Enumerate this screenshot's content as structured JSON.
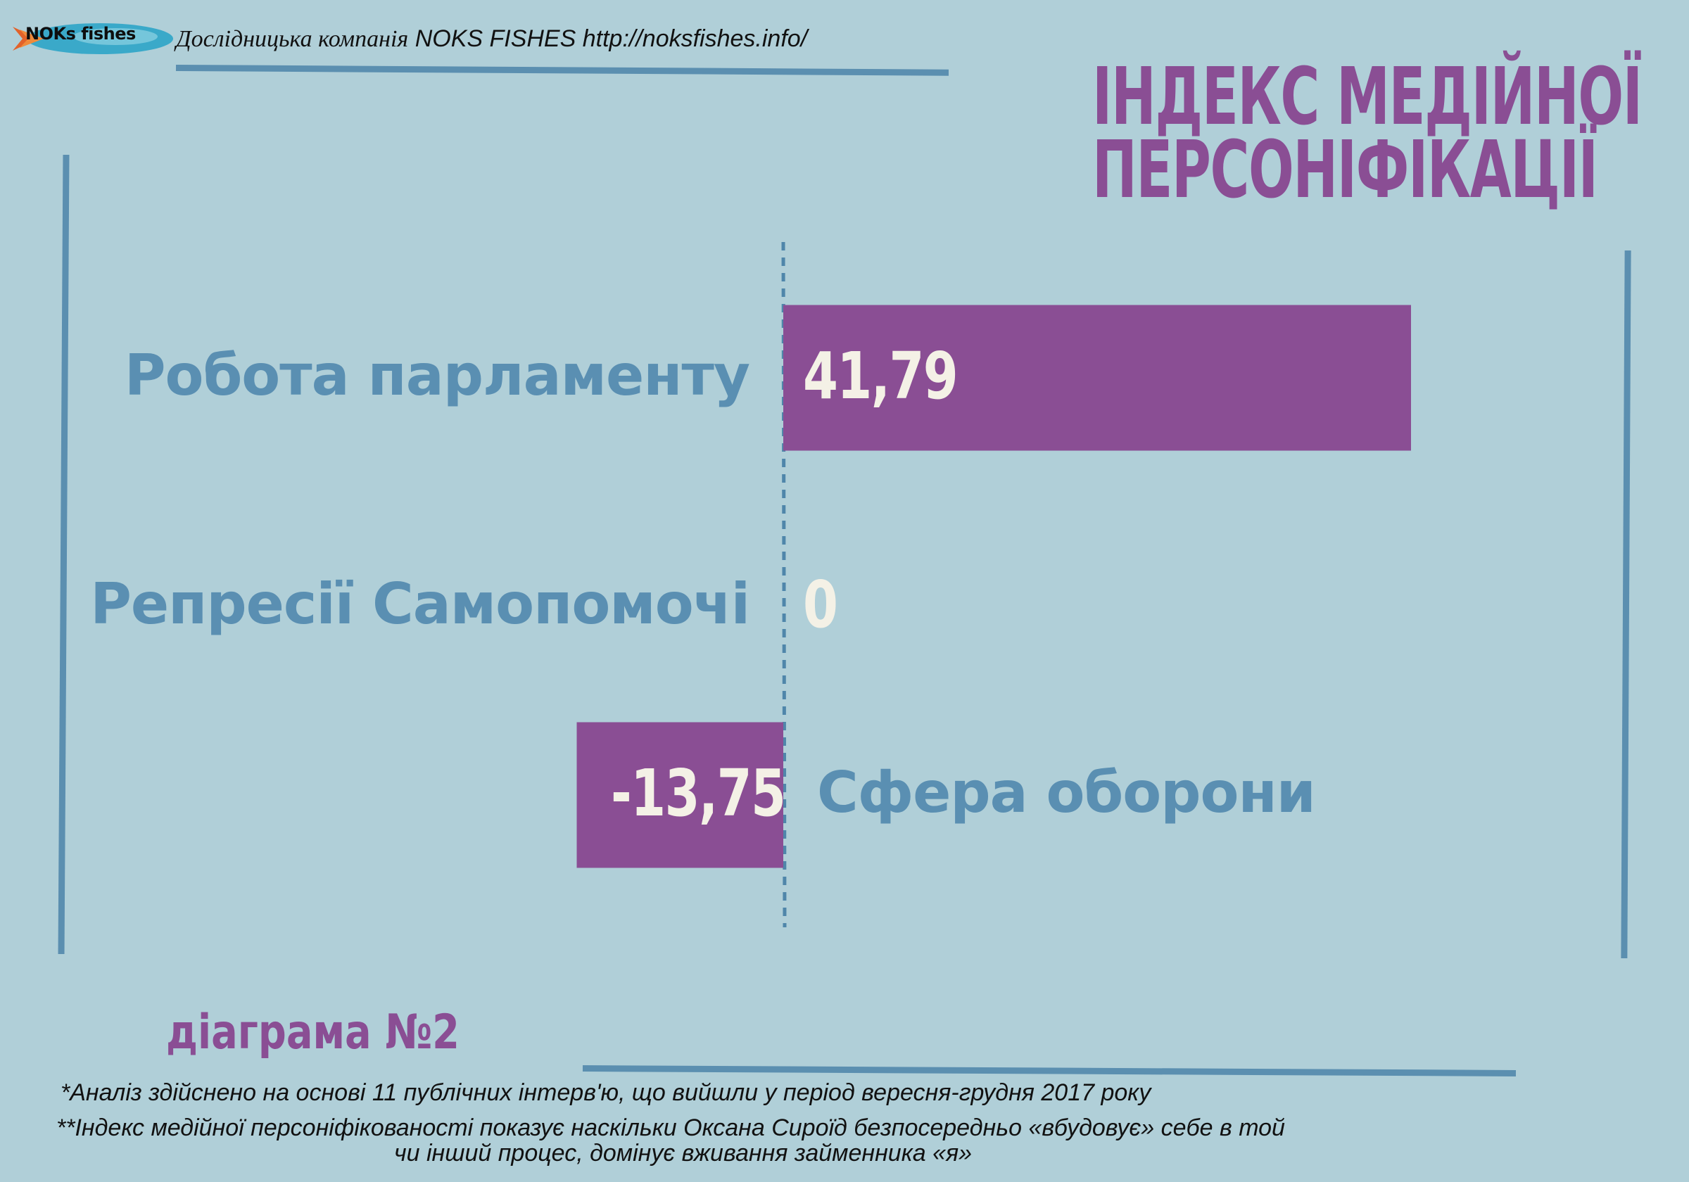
{
  "header": {
    "logo_text": "NOKs fishes",
    "company_prefix": "Дослідницька компанія",
    "company_name": "NOKS FISHES http://noksfishes.info/"
  },
  "title_line1": "ІНДЕКС МЕДІЙНОЇ",
  "title_line2": "ПЕРСОНІФІКАЦІЇ",
  "chart_data": {
    "type": "bar",
    "orientation": "horizontal",
    "categories": [
      "Робота парламенту",
      "Репресії Самопомочі",
      "Сфера оборони"
    ],
    "values": [
      41.79,
      0,
      -13.75
    ],
    "value_labels": [
      "41,79",
      "0",
      "-13,75"
    ],
    "bar_color": "#8a4e94",
    "grid": false,
    "legend": "none"
  },
  "footer": {
    "diagram_number": "діаграма №2",
    "note1": "*Аналіз здійснено на основі 11 публічних інтерв'ю, що вийшли у період вересня-грудня 2017 року",
    "note2_line1": "**Індекс медійної персоніфікованості показує наскільки Оксана Сироїд безпосередньо «вбудовує» себе в той",
    "note2_line2": "чи інший процес, домінує вживання займенника «я»"
  },
  "colors": {
    "background": "#b0cfd8",
    "accent_purple": "#8a4e94",
    "rule_blue": "#5b8fb0",
    "label_blue": "#5a8fb2",
    "value_text": "#f4f1e6"
  }
}
